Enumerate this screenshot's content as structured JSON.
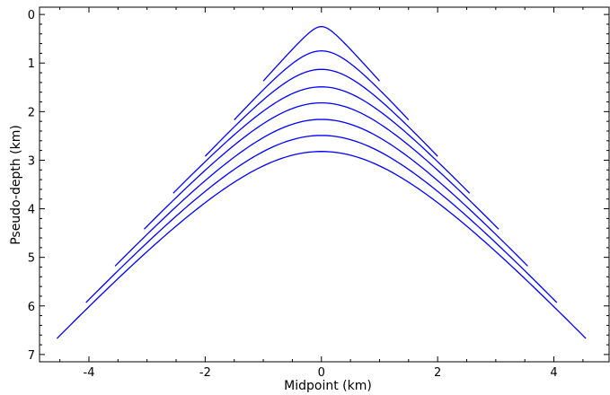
{
  "chart_data": {
    "type": "line",
    "title": "",
    "xlabel": "Midpoint (km)",
    "ylabel": "Pseudo-depth (km)",
    "xlim": [
      -4.85,
      4.95
    ],
    "ylim": [
      7.15,
      -0.15
    ],
    "y_inverted": true,
    "grid": false,
    "legend": "none",
    "line_color": "#0000ff",
    "x_ticks": [
      -4,
      -2,
      0,
      2,
      4
    ],
    "x_tick_labels": [
      "-4",
      "-2",
      "0",
      "2",
      "4"
    ],
    "y_ticks": [
      0,
      1,
      2,
      3,
      4,
      5,
      6,
      7
    ],
    "y_tick_labels": [
      "0",
      "1",
      "2",
      "3",
      "4",
      "5",
      "6",
      "7"
    ],
    "series": [
      {
        "apex_depth": 0.25,
        "x_range": [
          -1.0,
          1.0
        ],
        "end_depth": 1.37
      },
      {
        "apex_depth": 0.75,
        "x_range": [
          -1.5,
          1.5
        ],
        "end_depth": 2.17
      },
      {
        "apex_depth": 1.13,
        "x_range": [
          -2.0,
          2.0
        ],
        "end_depth": 2.92
      },
      {
        "apex_depth": 1.49,
        "x_range": [
          -2.55,
          2.55
        ],
        "end_depth": 3.68
      },
      {
        "apex_depth": 1.82,
        "x_range": [
          -3.05,
          3.05
        ],
        "end_depth": 4.42
      },
      {
        "apex_depth": 2.16,
        "x_range": [
          -3.55,
          3.55
        ],
        "end_depth": 5.18
      },
      {
        "apex_depth": 2.49,
        "x_range": [
          -4.05,
          4.05
        ],
        "end_depth": 5.93
      },
      {
        "apex_depth": 2.82,
        "x_range": [
          -4.55,
          4.55
        ],
        "end_depth": 6.67
      }
    ]
  }
}
